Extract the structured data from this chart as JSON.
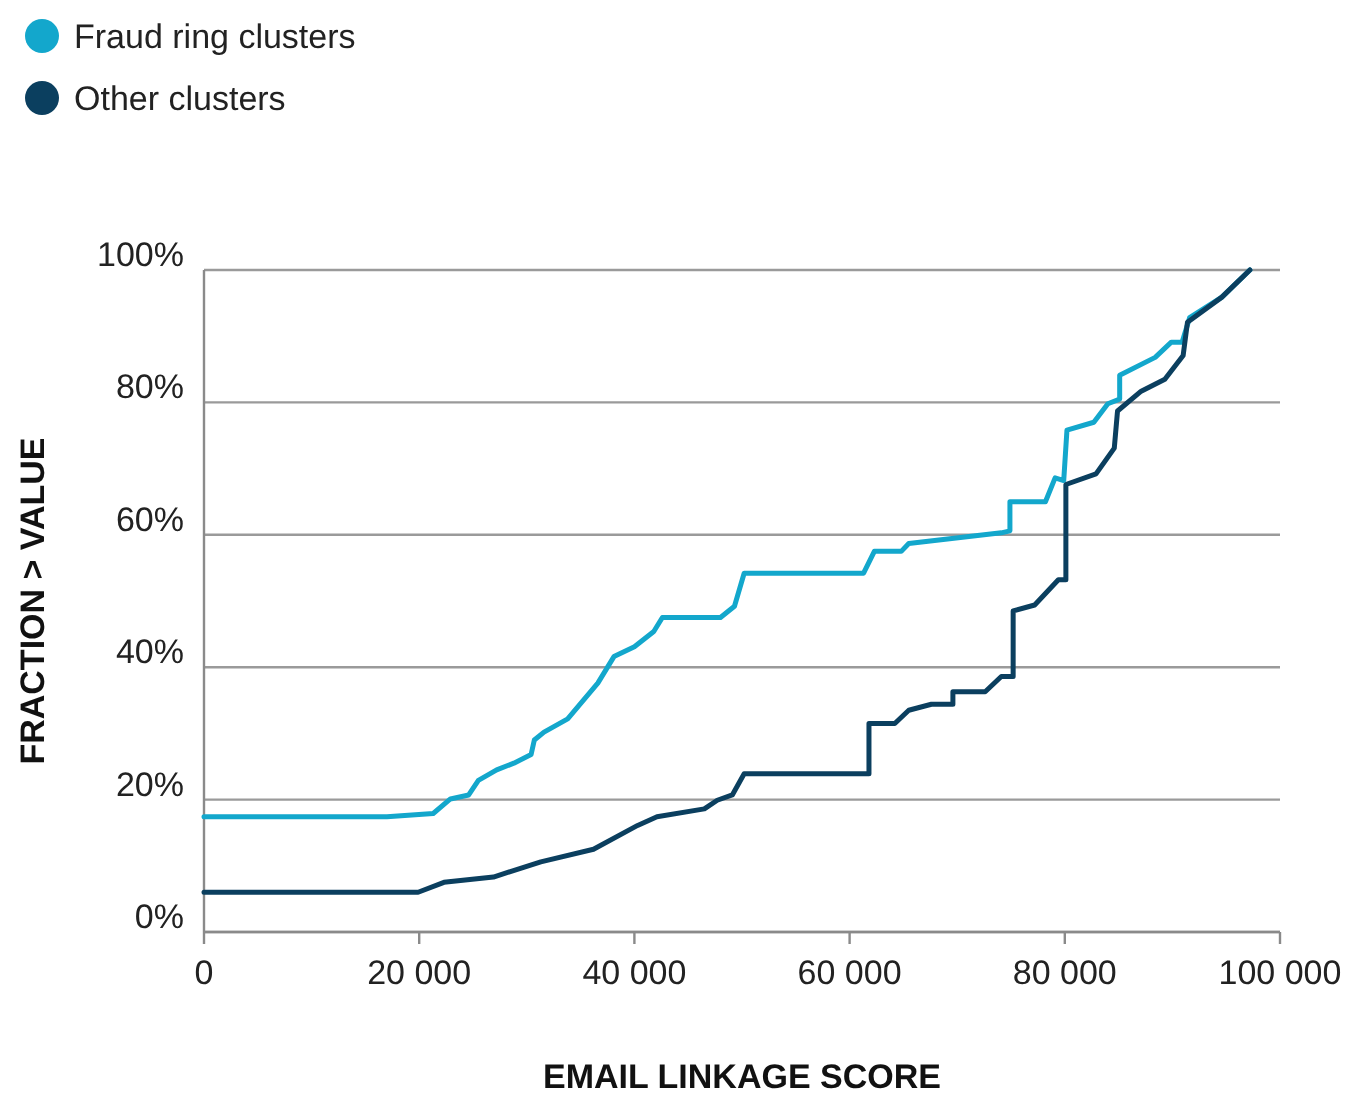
{
  "chart_data": {
    "type": "line",
    "xlabel": "EMAIL LINKAGE SCORE",
    "ylabel": "FRACTION > VALUE",
    "xlim": [
      0,
      100000
    ],
    "xticks": [
      {
        "value": 0,
        "label": "0"
      },
      {
        "value": 20000,
        "label": "20 000"
      },
      {
        "value": 40000,
        "label": "40 000"
      },
      {
        "value": 60000,
        "label": "60 000"
      },
      {
        "value": 80000,
        "label": "80 000"
      },
      {
        "value": 100000,
        "label": "100 000"
      }
    ],
    "ylim": [
      0,
      100
    ],
    "yticks": [
      {
        "value": 0,
        "label": "0%"
      },
      {
        "value": 20,
        "label": "20%"
      },
      {
        "value": 40,
        "label": "40%"
      },
      {
        "value": 60,
        "label": "60%"
      },
      {
        "value": 80,
        "label": "80%"
      },
      {
        "value": 100,
        "label": "100%"
      }
    ],
    "grid": "y",
    "legend": "top left",
    "marker": "none",
    "line_style": "solid",
    "series": [
      {
        "name": "Fraud ring clusters",
        "color": "#13a7cc",
        "x": [
          0,
          17000,
          21300,
          22900,
          24600,
          25500,
          27200,
          28800,
          30400,
          30700,
          31600,
          33800,
          36600,
          38100,
          40000,
          41800,
          42600,
          48000,
          49300,
          50200,
          61300,
          62300,
          64800,
          65500,
          74100,
          74900,
          74900,
          78200,
          79100,
          79900,
          80200,
          82700,
          84000,
          85100,
          85100,
          88400,
          89900,
          90900,
          91600,
          94600,
          97200
        ],
        "values": [
          17.4,
          17.4,
          17.9,
          20.1,
          20.7,
          22.9,
          24.5,
          25.5,
          26.8,
          29,
          30.2,
          32.2,
          37.6,
          41.6,
          43.1,
          45.4,
          47.5,
          47.5,
          49.2,
          54.2,
          54.2,
          57.5,
          57.5,
          58.7,
          60.3,
          60.6,
          65,
          65,
          68.6,
          68.2,
          75.8,
          77,
          79.8,
          80.5,
          84.1,
          86.8,
          89.1,
          89.1,
          92.8,
          95.9,
          100
        ]
      },
      {
        "name": "Other clusters",
        "color": "#0b3f5f",
        "x": [
          0,
          19900,
          22300,
          26900,
          31300,
          36200,
          40300,
          42100,
          46500,
          47700,
          49100,
          50200,
          61800,
          61800,
          64200,
          65500,
          67600,
          69600,
          69600,
          72600,
          74100,
          75200,
          75200,
          77200,
          79400,
          80100,
          80100,
          82900,
          84600,
          84900,
          87100,
          89300,
          91000,
          91400,
          94600,
          97200
        ],
        "values": [
          6,
          6,
          7.5,
          8.3,
          10.6,
          12.5,
          16.1,
          17.4,
          18.6,
          19.9,
          20.7,
          23.9,
          23.9,
          31.5,
          31.5,
          33.5,
          34.4,
          34.4,
          36.3,
          36.3,
          38.6,
          38.6,
          48.5,
          49.4,
          53.2,
          53.2,
          67.6,
          69.2,
          73.1,
          78.7,
          81.7,
          83.5,
          87.1,
          92.1,
          95.9,
          100
        ]
      }
    ]
  }
}
